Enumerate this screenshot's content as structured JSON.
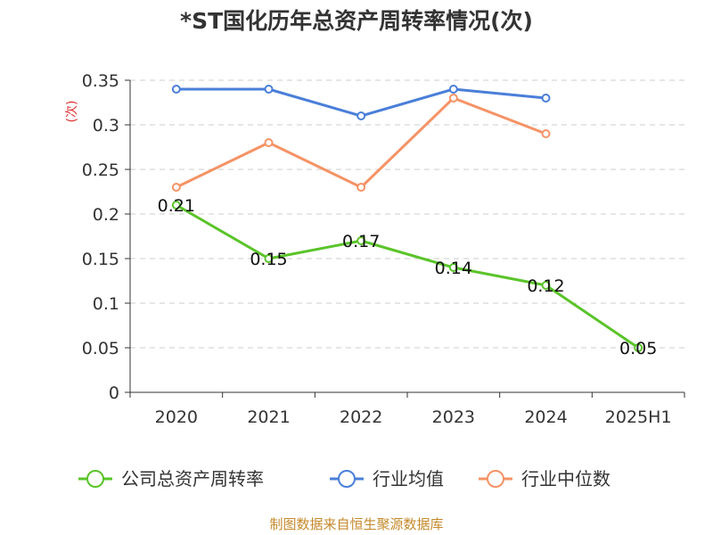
{
  "chart_data": {
    "type": "line",
    "title": "*ST国化历年总资产周转率情况(次)",
    "ylabel": "(次)",
    "categories": [
      "2020",
      "2021",
      "2022",
      "2023",
      "2024",
      "2025H1"
    ],
    "ylim": [
      0,
      0.35
    ],
    "yticks": [
      "0",
      "0.05",
      "0.1",
      "0.15",
      "0.2",
      "0.25",
      "0.3",
      "0.35"
    ],
    "grid": true,
    "legend_position": "bottom",
    "series": [
      {
        "name": "公司总资产周转率",
        "color": "#5ac42a",
        "values": [
          0.21,
          0.15,
          0.17,
          0.14,
          0.12,
          0.05
        ],
        "labels": [
          "0.21",
          "0.15",
          "0.17",
          "0.14",
          "0.12",
          "0.05"
        ]
      },
      {
        "name": "行业均值",
        "color": "#4a7fd9",
        "values": [
          0.34,
          0.34,
          0.31,
          0.34,
          0.33,
          null
        ]
      },
      {
        "name": "行业中位数",
        "color": "#f59366",
        "values": [
          0.23,
          0.28,
          0.23,
          0.33,
          0.29,
          null
        ]
      }
    ]
  },
  "footer": {
    "source": "制图数据来自恒生聚源数据库"
  }
}
